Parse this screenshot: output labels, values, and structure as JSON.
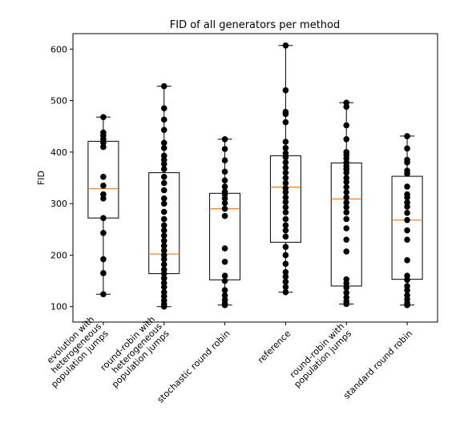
{
  "chart_data": {
    "type": "box",
    "title": "FID of all generators per method",
    "xlabel": "",
    "ylabel": "FID",
    "ylim": [
      70,
      630
    ],
    "yticks": [
      100,
      200,
      300,
      400,
      500,
      600
    ],
    "grid": false,
    "categories": [
      [
        "evolution with",
        "heterogeneous",
        "population jumps"
      ],
      [
        "round-robin with",
        "heterogeneous",
        "population jumps"
      ],
      [
        "stochastic round robin"
      ],
      [
        "reference"
      ],
      [
        "round-robin with",
        "population jumps"
      ],
      [
        "standard round robin"
      ]
    ],
    "boxes": [
      {
        "whisker_low": 124,
        "q1": 272,
        "median": 329,
        "q3": 421,
        "whisker_high": 468
      },
      {
        "whisker_low": 100,
        "q1": 164,
        "median": 202,
        "q3": 360,
        "whisker_high": 528
      },
      {
        "whisker_low": 103,
        "q1": 152,
        "median": 290,
        "q3": 320,
        "whisker_high": 425
      },
      {
        "whisker_low": 128,
        "q1": 225,
        "median": 332,
        "q3": 393,
        "whisker_high": 607
      },
      {
        "whisker_low": 105,
        "q1": 140,
        "median": 309,
        "q3": 379,
        "whisker_high": 496
      },
      {
        "whisker_low": 103,
        "q1": 153,
        "median": 268,
        "q3": 353,
        "whisker_high": 431
      }
    ],
    "points": [
      [
        468,
        438,
        432,
        425,
        418,
        410,
        352,
        335,
        318,
        310,
        272,
        243,
        192,
        165,
        124
      ],
      [
        528,
        485,
        463,
        443,
        418,
        408,
        393,
        385,
        377,
        367,
        352,
        340,
        326,
        310,
        300,
        284,
        270,
        258,
        248,
        238,
        228,
        218,
        209,
        200,
        192,
        182,
        172,
        164,
        155,
        146,
        138,
        128,
        120,
        112,
        105,
        100
      ],
      [
        425,
        406,
        384,
        362,
        345,
        333,
        323,
        318,
        310,
        301,
        290,
        276,
        213,
        187,
        160,
        150,
        132,
        122,
        113,
        106,
        103
      ],
      [
        607,
        520,
        478,
        474,
        458,
        420,
        408,
        398,
        390,
        380,
        370,
        360,
        350,
        340,
        330,
        322,
        312,
        303,
        293,
        283,
        270,
        258,
        248,
        236,
        216,
        200,
        183,
        167,
        158,
        148,
        138,
        128
      ],
      [
        496,
        488,
        452,
        425,
        400,
        395,
        388,
        380,
        373,
        367,
        360,
        350,
        342,
        332,
        322,
        312,
        302,
        293,
        283,
        270,
        252,
        230,
        207,
        153,
        145,
        137,
        127,
        118,
        110,
        105
      ],
      [
        431,
        407,
        385,
        380,
        364,
        358,
        333,
        318,
        312,
        302,
        294,
        282,
        268,
        248,
        230,
        190,
        160,
        152,
        140,
        132,
        122,
        114,
        107,
        103
      ]
    ],
    "colors": {
      "box": "#000000",
      "median": "#ff7f0e",
      "points": "#000000"
    }
  }
}
